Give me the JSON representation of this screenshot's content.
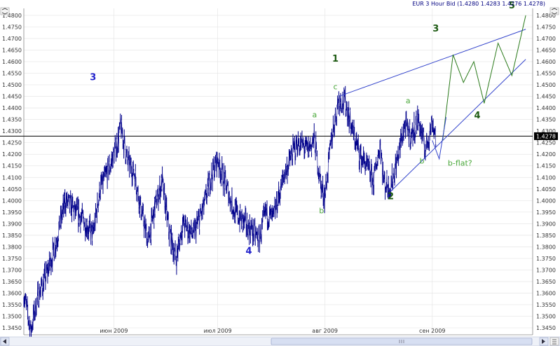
{
  "header": {
    "title": "EUR 3 Hour Bid (1.4280 1.4283 1.4276 1.4278)"
  },
  "current_price_label": "1.4278",
  "colors": {
    "price_bars": "#00008b",
    "trend_lines": "#3344cc",
    "projection": "#2a7a1a",
    "wave_blue": "#2222cc",
    "wave_green_dark": "#1d5a12",
    "wave_green_light": "#4aa83a",
    "grid": "#e6e6e6",
    "current_price_line": "#000000"
  },
  "chart_data": {
    "type": "line",
    "title": "EUR 3 Hour Bid (1.4280 1.4283 1.4276 1.4278)",
    "instrument": "EUR",
    "timeframe": "3 Hour",
    "xlabel": "",
    "ylabel": "",
    "x_ticks": [
      "июн 2009",
      "июл 2009",
      "авг 2009",
      "сен 2009"
    ],
    "y_ticks": [
      "1.4800",
      "1.4750",
      "1.4700",
      "1.4650",
      "1.4600",
      "1.4550",
      "1.4500",
      "1.4450",
      "1.4400",
      "1.4350",
      "1.4300",
      "1.4250",
      "1.4200",
      "1.4150",
      "1.4100",
      "1.4050",
      "1.4000",
      "1.3950",
      "1.3900",
      "1.3850",
      "1.3800",
      "1.3750",
      "1.3700",
      "1.3650",
      "1.3600",
      "1.3550",
      "1.3500",
      "1.3450"
    ],
    "ylim": [
      1.342,
      1.483
    ],
    "xlim": [
      "2009-05-06",
      "2009-09-30"
    ],
    "grid": true,
    "current_price": 1.4278,
    "price_anchors": [
      {
        "x": "2009-05-06",
        "y": 1.36
      },
      {
        "x": "2009-05-07",
        "y": 1.352
      },
      {
        "x": "2009-05-08",
        "y": 1.344
      },
      {
        "x": "2009-05-10",
        "y": 1.358
      },
      {
        "x": "2009-05-13",
        "y": 1.37
      },
      {
        "x": "2009-05-15",
        "y": 1.38
      },
      {
        "x": "2009-05-18",
        "y": 1.4
      },
      {
        "x": "2009-05-21",
        "y": 1.395
      },
      {
        "x": "2009-05-24",
        "y": 1.39
      },
      {
        "x": "2009-05-26",
        "y": 1.385
      },
      {
        "x": "2009-05-28",
        "y": 1.405
      },
      {
        "x": "2009-05-31",
        "y": 1.415
      },
      {
        "x": "2009-06-02",
        "y": 1.425
      },
      {
        "x": "2009-06-03",
        "y": 1.432
      },
      {
        "x": "2009-06-05",
        "y": 1.417
      },
      {
        "x": "2009-06-07",
        "y": 1.412
      },
      {
        "x": "2009-06-09",
        "y": 1.395
      },
      {
        "x": "2009-06-11",
        "y": 1.382
      },
      {
        "x": "2009-06-13",
        "y": 1.398
      },
      {
        "x": "2009-06-15",
        "y": 1.408
      },
      {
        "x": "2009-06-17",
        "y": 1.386
      },
      {
        "x": "2009-06-19",
        "y": 1.375
      },
      {
        "x": "2009-06-21",
        "y": 1.39
      },
      {
        "x": "2009-06-24",
        "y": 1.385
      },
      {
        "x": "2009-06-27",
        "y": 1.397
      },
      {
        "x": "2009-06-29",
        "y": 1.41
      },
      {
        "x": "2009-07-01",
        "y": 1.418
      },
      {
        "x": "2009-07-03",
        "y": 1.408
      },
      {
        "x": "2009-07-06",
        "y": 1.395
      },
      {
        "x": "2009-07-09",
        "y": 1.39
      },
      {
        "x": "2009-07-11",
        "y": 1.387
      },
      {
        "x": "2009-07-13",
        "y": 1.383
      },
      {
        "x": "2009-07-15",
        "y": 1.395
      },
      {
        "x": "2009-07-17",
        "y": 1.392
      },
      {
        "x": "2009-07-20",
        "y": 1.41
      },
      {
        "x": "2009-07-22",
        "y": 1.418
      },
      {
        "x": "2009-07-24",
        "y": 1.425
      },
      {
        "x": "2009-07-27",
        "y": 1.422
      },
      {
        "x": "2009-07-29",
        "y": 1.426
      },
      {
        "x": "2009-07-31",
        "y": 1.405
      },
      {
        "x": "2009-08-01",
        "y": 1.402
      },
      {
        "x": "2009-08-03",
        "y": 1.428
      },
      {
        "x": "2009-08-05",
        "y": 1.444
      },
      {
        "x": "2009-08-07",
        "y": 1.442
      },
      {
        "x": "2009-08-09",
        "y": 1.43
      },
      {
        "x": "2009-08-11",
        "y": 1.42
      },
      {
        "x": "2009-08-13",
        "y": 1.415
      },
      {
        "x": "2009-08-15",
        "y": 1.408
      },
      {
        "x": "2009-08-17",
        "y": 1.425
      },
      {
        "x": "2009-08-18",
        "y": 1.408
      },
      {
        "x": "2009-08-20",
        "y": 1.406
      },
      {
        "x": "2009-08-22",
        "y": 1.418
      },
      {
        "x": "2009-08-24",
        "y": 1.432
      },
      {
        "x": "2009-08-26",
        "y": 1.428
      },
      {
        "x": "2009-08-28",
        "y": 1.435
      },
      {
        "x": "2009-08-30",
        "y": 1.422
      },
      {
        "x": "2009-09-01",
        "y": 1.434
      },
      {
        "x": "2009-09-02",
        "y": 1.428
      }
    ],
    "trend_lines": [
      {
        "name": "upper",
        "from": {
          "x": "2009-08-05",
          "y": 1.445
        },
        "to": {
          "x": "2009-09-28",
          "y": 1.474
        }
      },
      {
        "name": "lower",
        "from": {
          "x": "2009-08-20",
          "y": 1.404
        },
        "to": {
          "x": "2009-09-28",
          "y": 1.461
        }
      }
    ],
    "projection": [
      {
        "x": "2009-09-04",
        "y": 1.426
      },
      {
        "x": "2009-09-07",
        "y": 1.463
      },
      {
        "x": "2009-09-10",
        "y": 1.451
      },
      {
        "x": "2009-09-13",
        "y": 1.46
      },
      {
        "x": "2009-09-16",
        "y": 1.442
      },
      {
        "x": "2009-09-20",
        "y": 1.468
      },
      {
        "x": "2009-09-24",
        "y": 1.454
      },
      {
        "x": "2009-09-28",
        "y": 1.48
      }
    ],
    "projection_flat": [
      {
        "x": "2009-09-01",
        "y": 1.426
      },
      {
        "x": "2009-09-03",
        "y": 1.418
      },
      {
        "x": "2009-09-05",
        "y": 1.436
      }
    ],
    "annotations": [
      {
        "text": "3",
        "x": "2009-05-26",
        "y": 1.452,
        "style": "blue"
      },
      {
        "text": "4",
        "x": "2009-07-10",
        "y": 1.377,
        "style": "blue"
      },
      {
        "text": "1",
        "x": "2009-08-04",
        "y": 1.46,
        "style": "dark"
      },
      {
        "text": "c",
        "x": "2009-08-04",
        "y": 1.448,
        "style": "light"
      },
      {
        "text": "a",
        "x": "2009-07-29",
        "y": 1.436,
        "style": "light"
      },
      {
        "text": "b",
        "x": "2009-07-31",
        "y": 1.3945,
        "style": "light"
      },
      {
        "text": "a",
        "x": "2009-08-25",
        "y": 1.442,
        "style": "light"
      },
      {
        "text": "b",
        "x": "2009-08-29",
        "y": 1.416,
        "style": "light"
      },
      {
        "text": "2",
        "x": "2009-08-20",
        "y": 1.4005,
        "style": "dark"
      },
      {
        "text": "3",
        "x": "2009-09-02",
        "y": 1.473,
        "style": "dark"
      },
      {
        "text": "4",
        "x": "2009-09-14",
        "y": 1.4355,
        "style": "dark"
      },
      {
        "text": "5",
        "x": "2009-09-24",
        "y": 1.483,
        "style": "dark"
      },
      {
        "text": "b-flat?",
        "x": "2009-09-09",
        "y": 1.415,
        "style": "light"
      }
    ]
  }
}
